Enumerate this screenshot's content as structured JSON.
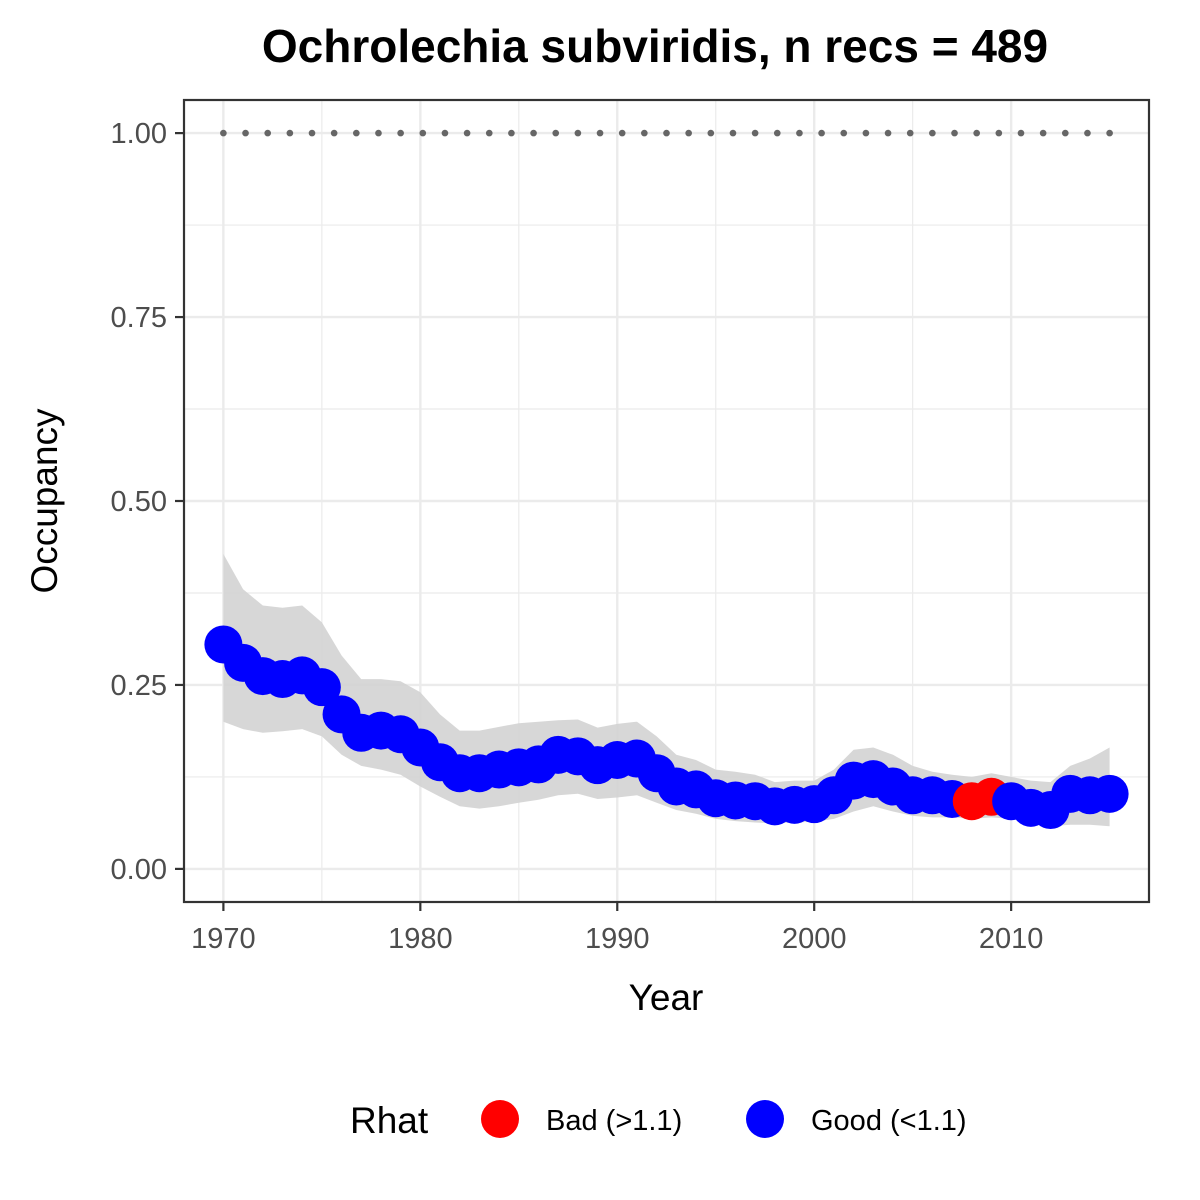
{
  "chart_data": {
    "type": "scatter",
    "title": "Ochrolechia subviridis, n recs = 489",
    "xlabel": "Year",
    "ylabel": "Occupancy",
    "xlim": [
      1968,
      2017
    ],
    "ylim": [
      -0.045,
      1.045
    ],
    "x_ticks": [
      1970,
      1980,
      1990,
      2000,
      2010
    ],
    "y_ticks": [
      0.0,
      0.25,
      0.5,
      0.75,
      1.0
    ],
    "y_tick_labels": [
      "0.00",
      "0.25",
      "0.50",
      "0.75",
      "1.00"
    ],
    "grid": true,
    "reference_line": {
      "y": 1.0,
      "style": "dotted",
      "color": "#666666"
    },
    "colors": {
      "bad": "#ff0000",
      "good": "#0000ff",
      "band": "#d3d3d3"
    },
    "legend": {
      "title": "Rhat",
      "position": "bottom",
      "entries": [
        {
          "label": "Bad (>1.1)",
          "key": "bad"
        },
        {
          "label": "Good (<1.1)",
          "key": "good"
        }
      ]
    },
    "series": [
      {
        "name": "Occupancy",
        "x": [
          1970,
          1971,
          1972,
          1973,
          1974,
          1975,
          1976,
          1977,
          1978,
          1979,
          1980,
          1981,
          1982,
          1983,
          1984,
          1985,
          1986,
          1987,
          1988,
          1989,
          1990,
          1991,
          1992,
          1993,
          1994,
          1995,
          1996,
          1997,
          1998,
          1999,
          2000,
          2001,
          2002,
          2003,
          2004,
          2005,
          2006,
          2007,
          2008,
          2009,
          2010,
          2011,
          2012,
          2013,
          2014,
          2015
        ],
        "y": [
          0.305,
          0.28,
          0.262,
          0.258,
          0.263,
          0.247,
          0.21,
          0.185,
          0.188,
          0.183,
          0.165,
          0.145,
          0.13,
          0.13,
          0.135,
          0.138,
          0.142,
          0.155,
          0.153,
          0.141,
          0.148,
          0.15,
          0.13,
          0.112,
          0.108,
          0.096,
          0.093,
          0.092,
          0.085,
          0.087,
          0.088,
          0.1,
          0.12,
          0.122,
          0.112,
          0.1,
          0.1,
          0.095,
          0.092,
          0.098,
          0.092,
          0.083,
          0.08,
          0.102,
          0.1,
          0.102
        ],
        "lower": [
          0.2,
          0.19,
          0.185,
          0.187,
          0.19,
          0.18,
          0.155,
          0.14,
          0.135,
          0.128,
          0.112,
          0.098,
          0.085,
          0.082,
          0.085,
          0.09,
          0.094,
          0.1,
          0.102,
          0.095,
          0.097,
          0.1,
          0.09,
          0.08,
          0.075,
          0.068,
          0.065,
          0.063,
          0.062,
          0.063,
          0.064,
          0.068,
          0.078,
          0.085,
          0.078,
          0.072,
          0.07,
          0.07,
          0.068,
          0.07,
          0.068,
          0.062,
          0.058,
          0.06,
          0.06,
          0.058
        ],
        "upper": [
          0.428,
          0.38,
          0.358,
          0.355,
          0.358,
          0.335,
          0.29,
          0.258,
          0.258,
          0.255,
          0.24,
          0.21,
          0.188,
          0.188,
          0.193,
          0.198,
          0.2,
          0.202,
          0.203,
          0.192,
          0.197,
          0.2,
          0.18,
          0.155,
          0.148,
          0.135,
          0.132,
          0.128,
          0.118,
          0.12,
          0.12,
          0.135,
          0.162,
          0.165,
          0.155,
          0.14,
          0.132,
          0.128,
          0.125,
          0.13,
          0.125,
          0.12,
          0.118,
          0.14,
          0.15,
          0.165
        ],
        "rhat": [
          "good",
          "good",
          "good",
          "good",
          "good",
          "good",
          "good",
          "good",
          "good",
          "good",
          "good",
          "good",
          "good",
          "good",
          "good",
          "good",
          "good",
          "good",
          "good",
          "good",
          "good",
          "good",
          "good",
          "good",
          "good",
          "good",
          "good",
          "good",
          "good",
          "good",
          "good",
          "good",
          "good",
          "good",
          "good",
          "good",
          "good",
          "good",
          "bad",
          "bad",
          "good",
          "good",
          "good",
          "good",
          "good",
          "good"
        ]
      }
    ]
  }
}
